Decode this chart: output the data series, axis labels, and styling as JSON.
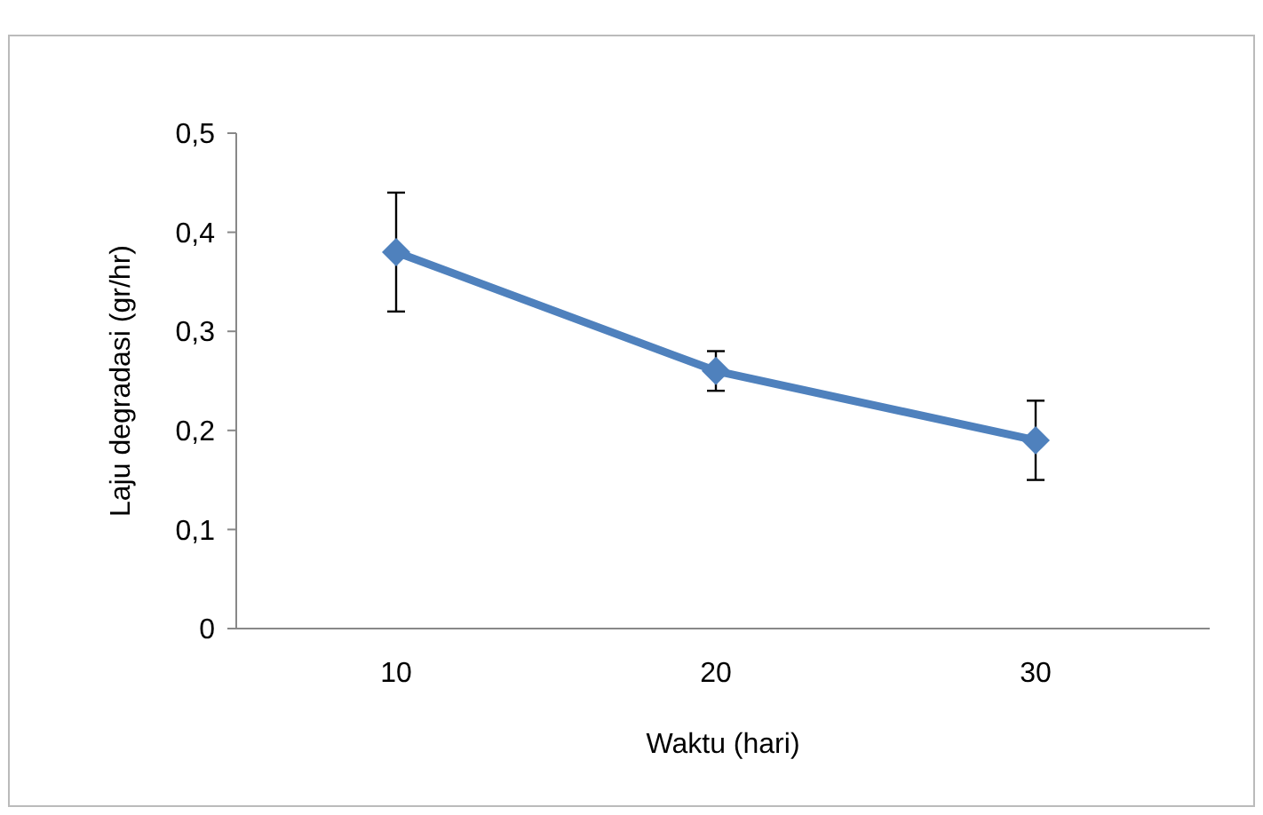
{
  "chart_data": {
    "type": "line",
    "xlabel": "Waktu (hari)",
    "ylabel": "Laju degradasi (gr/hr)",
    "categories": [
      "10",
      "20",
      "30"
    ],
    "series": [
      {
        "color": "#4f81bd",
        "values": [
          0.38,
          0.26,
          0.19
        ],
        "errors": [
          [
            0.32,
            0.44
          ],
          [
            0.24,
            0.28
          ],
          [
            0.15,
            0.23
          ]
        ]
      }
    ],
    "ylim": [
      0,
      0.5
    ],
    "yticks": [
      {
        "value": 0,
        "label": "0"
      },
      {
        "value": 0.1,
        "label": "0,1"
      },
      {
        "value": 0.2,
        "label": "0,2"
      },
      {
        "value": 0.3,
        "label": "0,3"
      },
      {
        "value": 0.4,
        "label": "0,4"
      },
      {
        "value": 0.5,
        "label": "0,5"
      }
    ],
    "grid": false,
    "marker": "diamond",
    "line_style": "solid"
  }
}
